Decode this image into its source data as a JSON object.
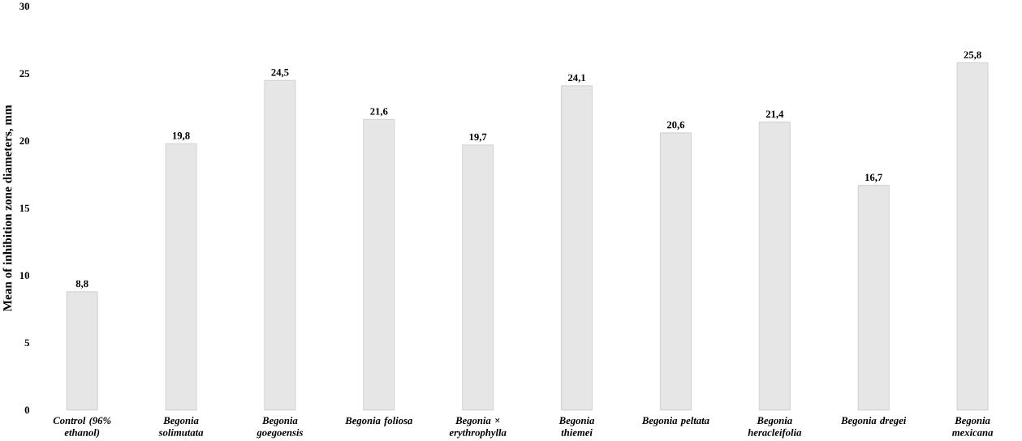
{
  "chart_data": {
    "type": "bar",
    "ylabel": "Mean of inhibition zone diameters, mm",
    "categories": [
      "Control (96% ethanol)",
      "Begonia solimutata",
      "Begonia goegoensis",
      "Begonia foliosa",
      "Begonia × erythrophylla",
      "Begonia thiemei",
      "Begonia peltata",
      "Begonia heracleifolia",
      "Begonia dregei",
      "Begonia mexicana"
    ],
    "values": [
      8.8,
      19.8,
      24.5,
      21.6,
      19.7,
      24.1,
      20.6,
      21.4,
      16.7,
      25.8
    ],
    "value_labels": [
      "8,8",
      "19,8",
      "24,5",
      "21,6",
      "19,7",
      "24,1",
      "20,6",
      "21,4",
      "16,7",
      "25,8"
    ],
    "color": "#e6e6e6",
    "ylim": [
      0,
      30
    ],
    "yticks": [
      0,
      5,
      10,
      15,
      20,
      25,
      30
    ]
  }
}
